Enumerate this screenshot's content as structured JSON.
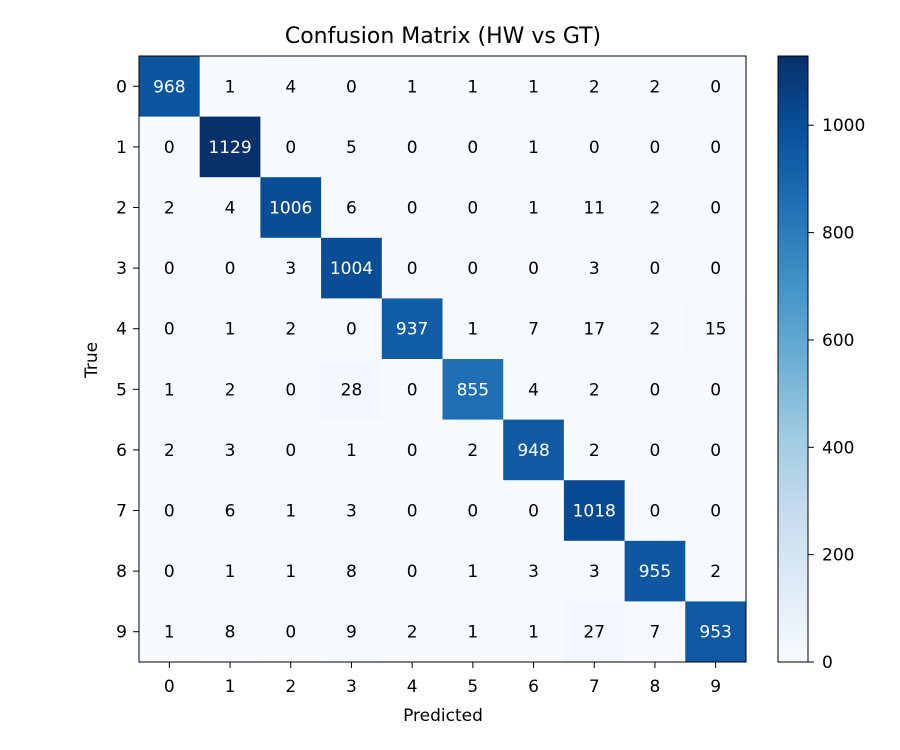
{
  "chart_data": {
    "type": "heatmap",
    "title": "Confusion Matrix (HW vs GT)",
    "xlabel": "Predicted",
    "ylabel": "True",
    "x_categories": [
      "0",
      "1",
      "2",
      "3",
      "4",
      "5",
      "6",
      "7",
      "8",
      "9"
    ],
    "y_categories": [
      "0",
      "1",
      "2",
      "3",
      "4",
      "5",
      "6",
      "7",
      "8",
      "9"
    ],
    "values": [
      [
        968,
        1,
        4,
        0,
        1,
        1,
        1,
        2,
        2,
        0
      ],
      [
        0,
        1129,
        0,
        5,
        0,
        0,
        1,
        0,
        0,
        0
      ],
      [
        2,
        4,
        1006,
        6,
        0,
        0,
        1,
        11,
        2,
        0
      ],
      [
        0,
        0,
        3,
        1004,
        0,
        0,
        0,
        3,
        0,
        0
      ],
      [
        0,
        1,
        2,
        0,
        937,
        1,
        7,
        17,
        2,
        15
      ],
      [
        1,
        2,
        0,
        28,
        0,
        855,
        4,
        2,
        0,
        0
      ],
      [
        2,
        3,
        0,
        1,
        0,
        2,
        948,
        2,
        0,
        0
      ],
      [
        0,
        6,
        1,
        3,
        0,
        0,
        0,
        1018,
        0,
        0
      ],
      [
        0,
        1,
        1,
        8,
        0,
        1,
        3,
        3,
        955,
        2
      ],
      [
        1,
        8,
        0,
        9,
        2,
        1,
        1,
        27,
        7,
        953
      ]
    ],
    "colorbar": {
      "colormap": "Blues",
      "range": [
        0,
        1129
      ],
      "ticks": [
        0,
        200,
        400,
        600,
        800,
        1000
      ]
    },
    "grid": false
  }
}
